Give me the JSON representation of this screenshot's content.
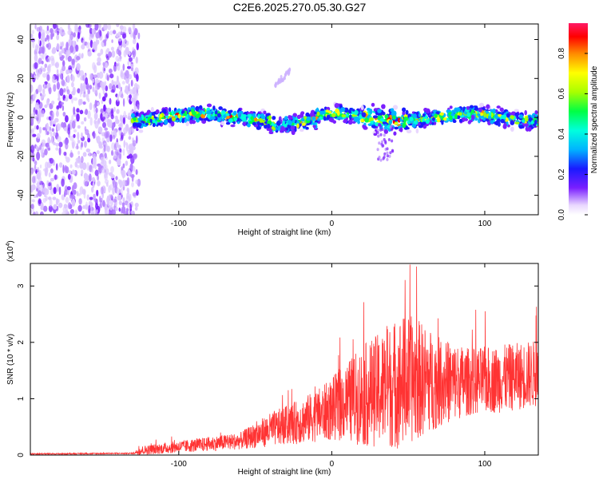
{
  "title": "C2E6.2025.270.05.30.G27",
  "chart_data": [
    {
      "type": "heatmap",
      "name": "spectrogram",
      "xlabel": "Height of straight line (km)",
      "ylabel": "Frequency (Hz)",
      "xlim": [
        -197,
        135
      ],
      "ylim": [
        -50,
        48
      ],
      "xticks": [
        -100,
        0,
        100
      ],
      "yticks": [
        -40,
        -20,
        0,
        20,
        40
      ],
      "colorbar": {
        "label": "Normalized spectral amplitude",
        "range": [
          0,
          0.95
        ],
        "ticks": [
          0.0,
          0.2,
          0.4,
          0.6,
          0.8
        ]
      },
      "features": {
        "noise_region_x": [
          -197,
          -130
        ],
        "signal_band_center_hz": 0,
        "signal_band_halfwidth_hz": 6,
        "signal_start_x": -130,
        "faint_streak": {
          "x": [
            -37,
            -27
          ],
          "y": [
            17,
            24
          ]
        }
      }
    },
    {
      "type": "line",
      "name": "snr",
      "xlabel": "Height of straight line (km)",
      "ylabel": "SNR (10 * v/v)",
      "y_multiplier": "(x10",
      "y_multiplier_exp": "4",
      "y_multiplier_close": ")",
      "xlim": [
        -197,
        135
      ],
      "ylim": [
        0,
        3.4
      ],
      "xticks": [
        -100,
        0,
        100
      ],
      "yticks": [
        0,
        1,
        2,
        3
      ],
      "color": "#ff3333",
      "envelope": {
        "x": [
          -197,
          -130,
          -125,
          -60,
          -40,
          -20,
          -5,
          10,
          20,
          30,
          45,
          55,
          70,
          90,
          110,
          135
        ],
        "base": [
          0.02,
          0.03,
          0.08,
          0.25,
          0.45,
          0.6,
          0.75,
          0.95,
          1.05,
          1.15,
          1.3,
          1.35,
          1.3,
          1.3,
          1.35,
          1.45
        ],
        "amp": [
          0.01,
          0.01,
          0.08,
          0.15,
          0.3,
          0.4,
          0.5,
          0.7,
          0.9,
          1.0,
          1.2,
          1.1,
          0.8,
          0.6,
          0.6,
          0.6
        ]
      }
    }
  ]
}
